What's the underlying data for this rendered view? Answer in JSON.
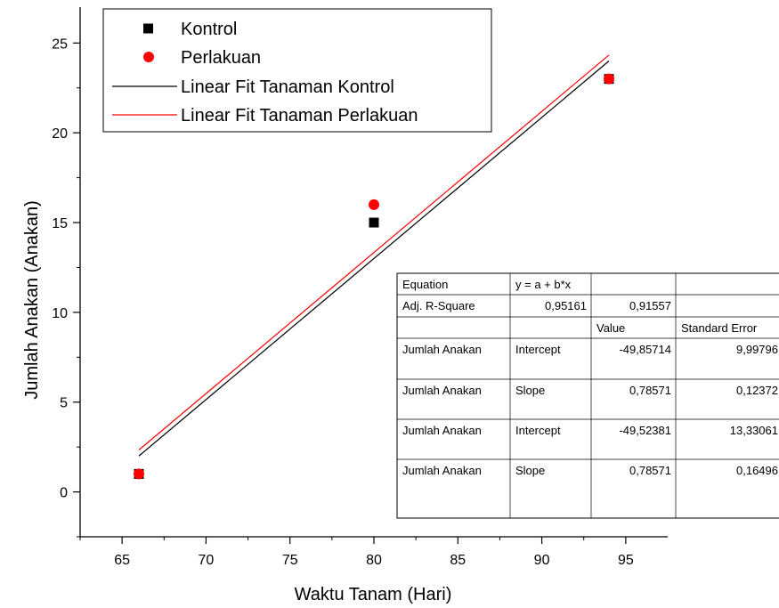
{
  "chart_data": {
    "type": "scatter",
    "xlabel": "Waktu Tanam (Hari)",
    "ylabel": "Jumlah Anakan (Anakan)",
    "xlim": [
      62.5,
      97.5
    ],
    "ylim": [
      -2.5,
      27
    ],
    "xticks": [
      65,
      70,
      75,
      80,
      85,
      90,
      95
    ],
    "yticks": [
      0,
      5,
      10,
      15,
      20,
      25
    ],
    "grid": false,
    "legend_position": "top-left",
    "series": [
      {
        "name": "Kontrol",
        "kind": "points",
        "marker": "square",
        "color": "#000000",
        "x": [
          66,
          80,
          94
        ],
        "y": [
          1,
          15,
          23
        ]
      },
      {
        "name": "Perlakuan",
        "kind": "points",
        "marker": "circle",
        "color": "#ff0000",
        "x": [
          66,
          80,
          94
        ],
        "y": [
          1,
          16,
          23
        ]
      },
      {
        "name": "Linear Fit Tanaman Kontrol",
        "kind": "line",
        "color": "#000000",
        "intercept": -49.85714,
        "slope": 0.78571,
        "x_range": [
          66,
          94
        ]
      },
      {
        "name": "Linear Fit Tanaman Perlakuan",
        "kind": "line",
        "color": "#ff0000",
        "intercept": -49.52381,
        "slope": 0.78571,
        "x_range": [
          66,
          94
        ]
      }
    ],
    "fit_table": {
      "rows": [
        [
          "Equation",
          "y = a + b*x",
          "",
          ""
        ],
        [
          "Adj. R-Square",
          "0,95161",
          "0,91557",
          ""
        ],
        [
          "",
          "",
          "Value",
          "Standard Error"
        ],
        [
          "Jumlah Anakan",
          "Intercept",
          "-49,85714",
          "9,99796"
        ],
        [
          "Jumlah Anakan",
          "Slope",
          "0,78571",
          "0,12372"
        ],
        [
          "Jumlah Anakan",
          "Intercept",
          "-49,52381",
          "13,33061"
        ],
        [
          "Jumlah Anakan",
          "Slope",
          "0,78571",
          "0,16496"
        ]
      ]
    }
  }
}
